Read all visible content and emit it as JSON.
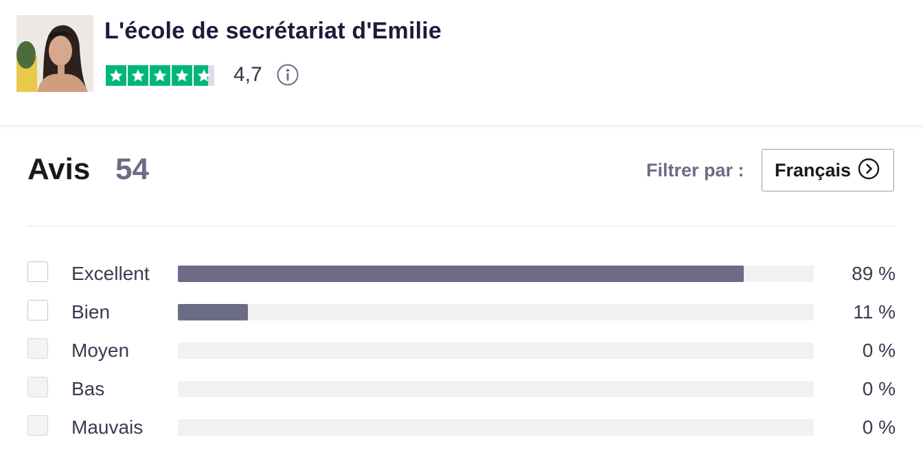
{
  "company": {
    "name": "L'école de secrétariat d'Emilie",
    "rating": "4,7",
    "stars_fraction": 0.94
  },
  "reviews": {
    "title": "Avis",
    "count": "54"
  },
  "filter": {
    "label": "Filtrer par :",
    "language": "Français"
  },
  "distribution": [
    {
      "label": "Excellent",
      "percent_text": "89 %",
      "value": 0.89,
      "enabled": true
    },
    {
      "label": "Bien",
      "percent_text": "11 %",
      "value": 0.11,
      "enabled": true
    },
    {
      "label": "Moyen",
      "percent_text": "0 %",
      "value": 0,
      "enabled": false
    },
    {
      "label": "Bas",
      "percent_text": "0 %",
      "value": 0,
      "enabled": false
    },
    {
      "label": "Mauvais",
      "percent_text": "0 %",
      "value": 0,
      "enabled": false
    }
  ],
  "colors": {
    "star_green": "#00b67a",
    "bar_fill": "#6c6c85",
    "bar_track": "#f1f1f4",
    "title_navy": "#1c1c3c"
  }
}
